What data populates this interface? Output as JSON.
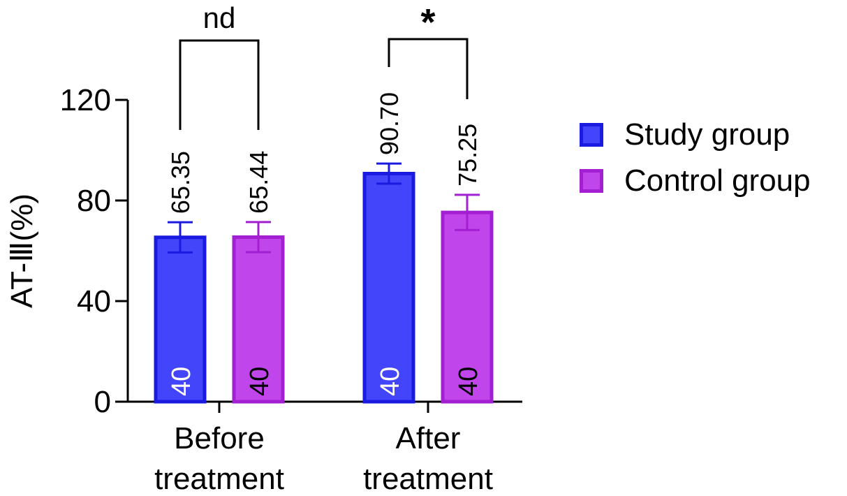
{
  "chart_data": {
    "type": "bar",
    "ylabel": "AT-Ⅲ(%)",
    "ylim": [
      0,
      120
    ],
    "yticks": [
      0,
      40,
      80,
      120
    ],
    "categories": [
      [
        "Before",
        "treatment"
      ],
      [
        "After",
        "treatment"
      ]
    ],
    "series": [
      {
        "name": "Study group",
        "fill": "#4245fa",
        "stroke": "#1a1ae0",
        "values": [
          65.35,
          90.7
        ],
        "value_labels": [
          "65.35",
          "90.70"
        ],
        "error": [
          6.0,
          4.0
        ],
        "n_labels": [
          "40",
          "40"
        ],
        "n_label_color": "#ffffff"
      },
      {
        "name": "Control group",
        "fill": "#c046ec",
        "stroke": "#a21fd2",
        "values": [
          65.44,
          75.25
        ],
        "value_labels": [
          "65.44",
          "75.25"
        ],
        "error": [
          6.0,
          7.0
        ],
        "n_labels": [
          "40",
          "40"
        ],
        "n_label_color": "#000000"
      }
    ],
    "significance": [
      "nd",
      "*"
    ],
    "grid": false,
    "legend_position": "right"
  }
}
